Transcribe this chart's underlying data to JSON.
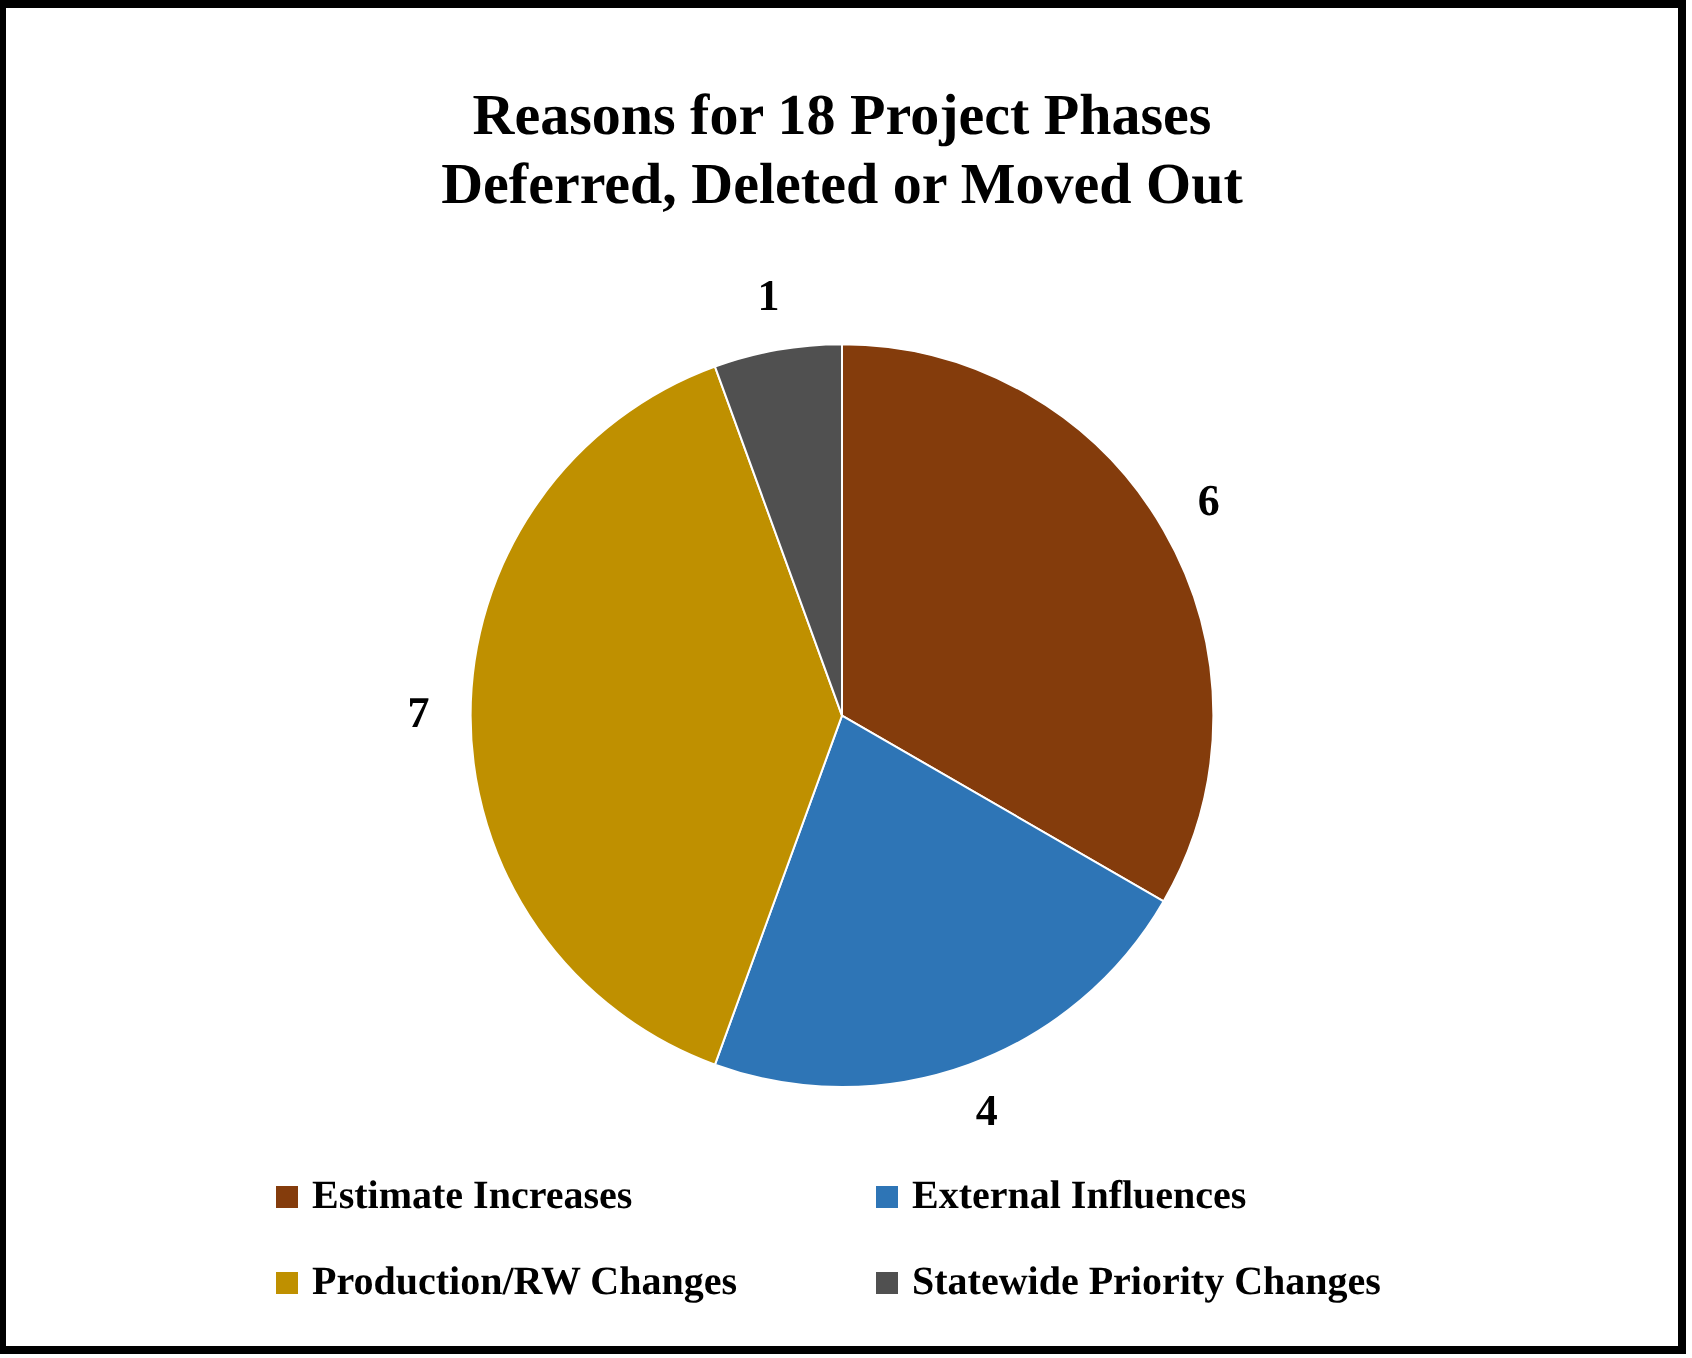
{
  "chart_data": {
    "type": "pie",
    "title": "Reasons for 18 Project Phases\nDeferred, Deleted or Moved Out",
    "categories": [
      "Estimate Increases",
      "External Influences",
      "Production/RW Changes",
      "Statewide Priority Changes"
    ],
    "values": [
      6,
      4,
      7,
      1
    ],
    "colors": [
      "#843c0c",
      "#2e75b6",
      "#bf9000",
      "#505050"
    ],
    "data_labels": true,
    "legend": "bottom"
  }
}
